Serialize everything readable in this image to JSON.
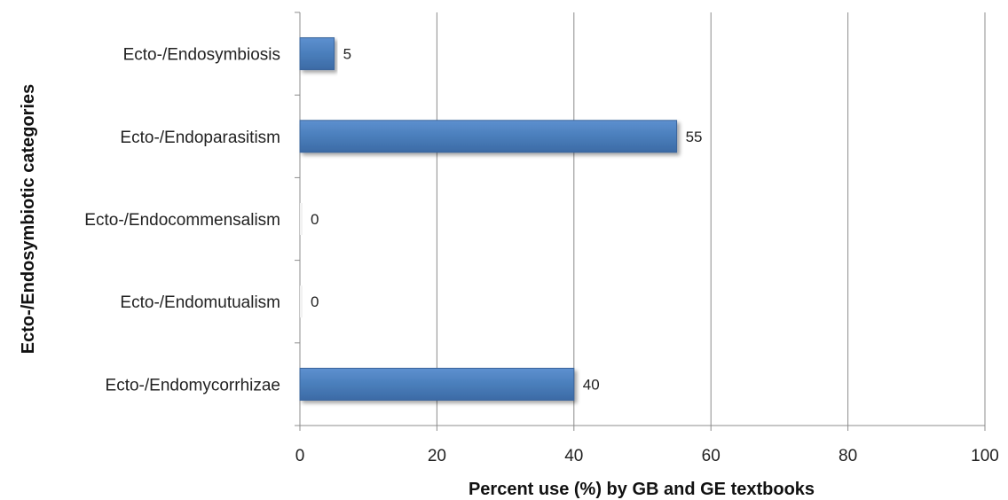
{
  "chart_data": {
    "type": "bar",
    "orientation": "horizontal",
    "title": "",
    "xlabel": "Percent use (%) by GB and GE textbooks",
    "ylabel": "Ecto-/Endosymbiotic  categories",
    "categories": [
      "Ecto-/Endosymbiosis",
      "Ecto-/Endoparasitism",
      "Ecto-/Endocommensalism",
      "Ecto-/Endomutualism",
      "Ecto-/Endomycorrhizae"
    ],
    "values": [
      5,
      55,
      0,
      0,
      40
    ],
    "data_labels": [
      "5",
      "55",
      "0",
      "0",
      "40"
    ],
    "xlim": [
      0,
      100
    ],
    "xticks": [
      0,
      20,
      40,
      60,
      80,
      100
    ],
    "xtick_labels": [
      "0",
      "20",
      "40",
      "60",
      "80",
      "100"
    ],
    "grid": "vertical major gridlines",
    "legend": "none",
    "bar_color": "#4a7ebb"
  }
}
